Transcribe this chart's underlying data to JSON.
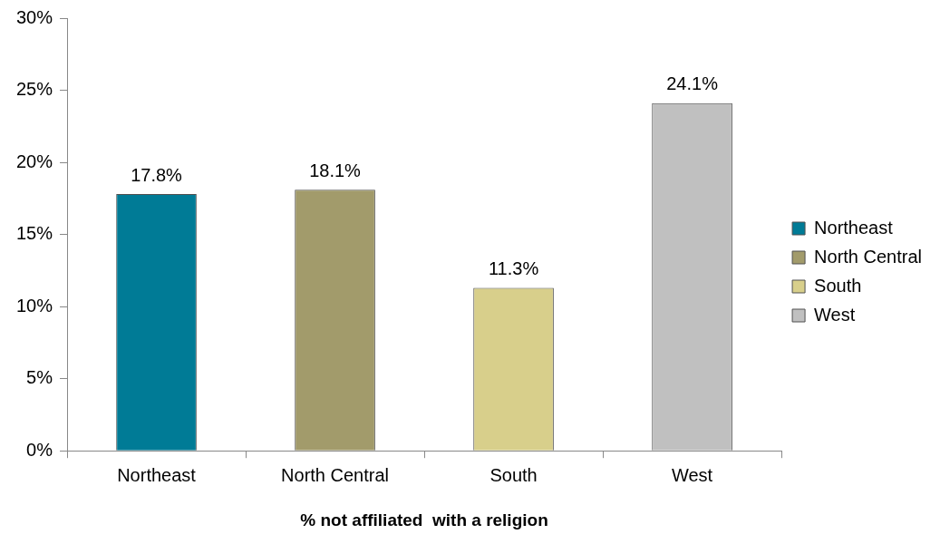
{
  "chart_data": {
    "type": "bar",
    "xlabel": "% not affiliated  with a religion",
    "categories": [
      "Northeast",
      "North Central",
      "South",
      "West"
    ],
    "series": [
      {
        "name": "Northeast",
        "color": "#007b96",
        "values": [
          17.8,
          null,
          null,
          null
        ],
        "value_labels": [
          "17.8%",
          null,
          null,
          null
        ]
      },
      {
        "name": "North Central",
        "color": "#a29b6b",
        "values": [
          null,
          18.1,
          null,
          null
        ],
        "value_labels": [
          null,
          "18.1%",
          null,
          null
        ]
      },
      {
        "name": "South",
        "color": "#d8cf8b",
        "values": [
          null,
          null,
          11.3,
          null
        ],
        "value_labels": [
          null,
          null,
          "11.3%",
          null
        ]
      },
      {
        "name": "West",
        "color": "#c0c0c0",
        "values": [
          null,
          null,
          null,
          24.1
        ],
        "value_labels": [
          null,
          null,
          null,
          "24.1%"
        ]
      }
    ],
    "ylim": [
      0,
      30
    ],
    "yticks": [
      {
        "value": 0,
        "label": "0%"
      },
      {
        "value": 5,
        "label": "5%"
      },
      {
        "value": 10,
        "label": "10%"
      },
      {
        "value": 15,
        "label": "15%"
      },
      {
        "value": 20,
        "label": "20%"
      },
      {
        "value": 25,
        "label": "25%"
      },
      {
        "value": 30,
        "label": "30%"
      }
    ],
    "grid": false,
    "legend": "right"
  }
}
